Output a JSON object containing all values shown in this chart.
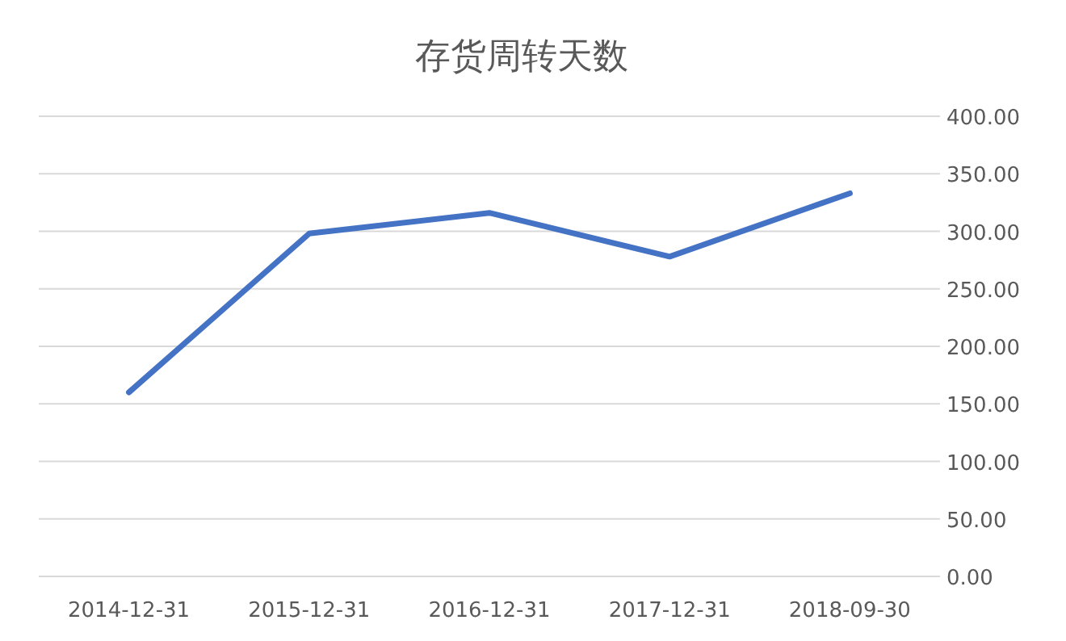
{
  "chart_data": {
    "type": "line",
    "title": "存货周转天数",
    "categories": [
      "2014-12-31",
      "2015-12-31",
      "2016-12-31",
      "2017-12-31",
      "2018-09-30"
    ],
    "series": [
      {
        "color": "#4472c4",
        "values": [
          160,
          298,
          316,
          278,
          333
        ]
      }
    ],
    "ylim": [
      0,
      400
    ],
    "yticks": [
      {
        "value": 0,
        "label": "0.00"
      },
      {
        "value": 50,
        "label": "50.00"
      },
      {
        "value": 100,
        "label": "100.00"
      },
      {
        "value": 150,
        "label": "150.00"
      },
      {
        "value": 200,
        "label": "200.00"
      },
      {
        "value": 250,
        "label": "250.00"
      },
      {
        "value": 300,
        "label": "300.00"
      },
      {
        "value": 350,
        "label": "350.00"
      },
      {
        "value": 400,
        "label": "400.00"
      }
    ],
    "grid": "y",
    "marker": "none",
    "line_style": "solid"
  }
}
